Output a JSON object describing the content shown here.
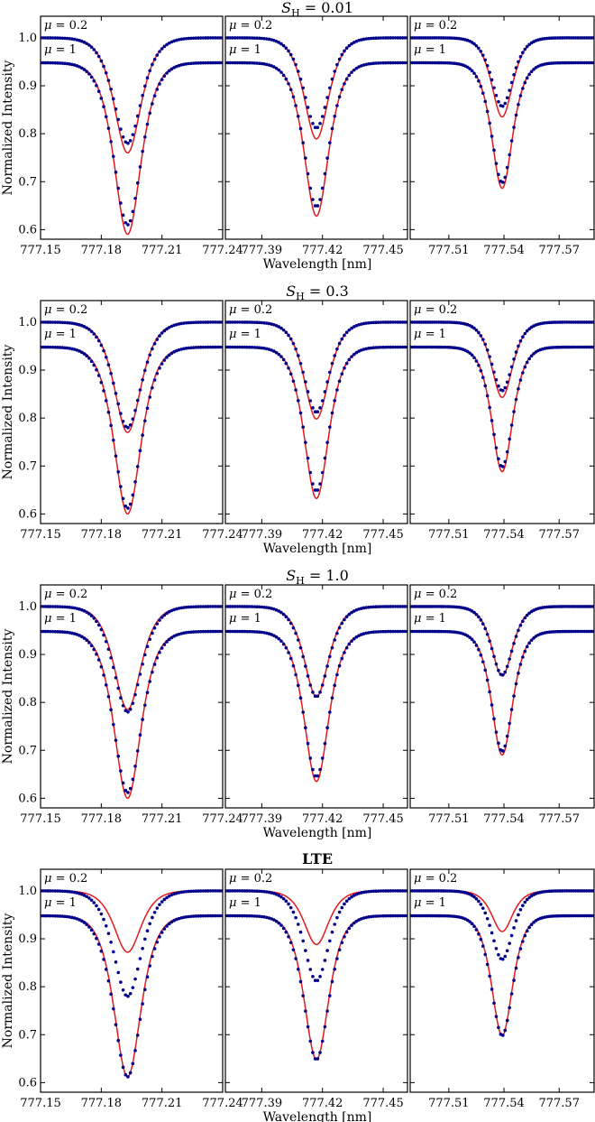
{
  "figure": {
    "ylabel": "Normalized Intensity",
    "xlabel": "Wavelength [nm]",
    "colors": {
      "observed": "#00008b",
      "model": "#e31a1c",
      "axis": "#000000"
    }
  },
  "chart_data": [
    {
      "type": "line",
      "title": "S_H = 0.01",
      "title_parts": {
        "sym": "S",
        "sub": "H",
        "rest": " = 0.01"
      },
      "ylim": [
        0.58,
        1.045
      ],
      "yticks": [
        0.6,
        0.7,
        0.8,
        0.9,
        1.0
      ],
      "panels": [
        {
          "xlim": [
            777.15,
            777.24
          ],
          "xticks": [
            777.15,
            777.18,
            777.21,
            777.24
          ],
          "xtick_labels": [
            "777.15",
            "777.18",
            "777.21",
            "777.24"
          ],
          "center": 777.193,
          "width_obs": 0.0075,
          "width_model": 0.0072,
          "mu_0_2": {
            "continuum": 1.0,
            "obs_min": 0.78,
            "model_min": 0.76
          },
          "mu_1": {
            "continuum": 0.948,
            "obs_min": 0.61,
            "model_min": 0.59
          }
        },
        {
          "xlim": [
            777.372,
            777.462
          ],
          "xticks": [
            777.39,
            777.42,
            777.45
          ],
          "xtick_labels": [
            "777.39",
            "777.42",
            "777.45"
          ],
          "center": 777.417,
          "width_obs": 0.0068,
          "width_model": 0.0066,
          "mu_0_2": {
            "continuum": 1.0,
            "obs_min": 0.812,
            "model_min": 0.789
          },
          "mu_1": {
            "continuum": 0.948,
            "obs_min": 0.648,
            "model_min": 0.628
          }
        },
        {
          "xlim": [
            777.489,
            777.589
          ],
          "xticks": [
            777.51,
            777.54,
            777.57
          ],
          "xtick_labels": [
            "777.51",
            "777.54",
            "777.57"
          ],
          "center": 777.539,
          "width_obs": 0.0064,
          "width_model": 0.0062,
          "mu_0_2": {
            "continuum": 1.0,
            "obs_min": 0.857,
            "model_min": 0.835
          },
          "mu_1": {
            "continuum": 0.948,
            "obs_min": 0.698,
            "model_min": 0.686
          }
        }
      ],
      "mu_labels": [
        "μ = 0.2",
        "μ = 1"
      ]
    },
    {
      "type": "line",
      "title": "S_H = 0.3",
      "title_parts": {
        "sym": "S",
        "sub": "H",
        "rest": " = 0.3"
      },
      "ylim": [
        0.58,
        1.045
      ],
      "yticks": [
        0.6,
        0.7,
        0.8,
        0.9,
        1.0
      ],
      "panels": [
        {
          "xlim": [
            777.15,
            777.24
          ],
          "xticks": [
            777.15,
            777.18,
            777.21,
            777.24
          ],
          "xtick_labels": [
            "777.15",
            "777.18",
            "777.21",
            "777.24"
          ],
          "center": 777.193,
          "width_obs": 0.0075,
          "width_model": 0.0072,
          "mu_0_2": {
            "continuum": 1.0,
            "obs_min": 0.78,
            "model_min": 0.77
          },
          "mu_1": {
            "continuum": 0.948,
            "obs_min": 0.612,
            "model_min": 0.6
          }
        },
        {
          "xlim": [
            777.372,
            777.462
          ],
          "xticks": [
            777.39,
            777.42,
            777.45
          ],
          "xtick_labels": [
            "777.39",
            "777.42",
            "777.45"
          ],
          "center": 777.417,
          "width_obs": 0.0068,
          "width_model": 0.0066,
          "mu_0_2": {
            "continuum": 1.0,
            "obs_min": 0.812,
            "model_min": 0.798
          },
          "mu_1": {
            "continuum": 0.948,
            "obs_min": 0.648,
            "model_min": 0.632
          }
        },
        {
          "xlim": [
            777.489,
            777.589
          ],
          "xticks": [
            777.51,
            777.54,
            777.57
          ],
          "xtick_labels": [
            "777.51",
            "777.54",
            "777.57"
          ],
          "center": 777.539,
          "width_obs": 0.0064,
          "width_model": 0.0062,
          "mu_0_2": {
            "continuum": 1.0,
            "obs_min": 0.857,
            "model_min": 0.843
          },
          "mu_1": {
            "continuum": 0.948,
            "obs_min": 0.698,
            "model_min": 0.688
          }
        }
      ],
      "mu_labels": [
        "μ = 0.2",
        "μ = 1"
      ]
    },
    {
      "type": "line",
      "title": "S_H = 1.0",
      "title_parts": {
        "sym": "S",
        "sub": "H",
        "rest": " = 1.0"
      },
      "ylim": [
        0.58,
        1.045
      ],
      "yticks": [
        0.6,
        0.7,
        0.8,
        0.9,
        1.0
      ],
      "panels": [
        {
          "xlim": [
            777.15,
            777.24
          ],
          "xticks": [
            777.15,
            777.18,
            777.21,
            777.24
          ],
          "xtick_labels": [
            "777.15",
            "777.18",
            "777.21",
            "777.24"
          ],
          "center": 777.193,
          "width_obs": 0.0075,
          "width_model": 0.0072,
          "mu_0_2": {
            "continuum": 1.0,
            "obs_min": 0.78,
            "model_min": 0.785
          },
          "mu_1": {
            "continuum": 0.948,
            "obs_min": 0.612,
            "model_min": 0.6
          }
        },
        {
          "xlim": [
            777.372,
            777.462
          ],
          "xticks": [
            777.39,
            777.42,
            777.45
          ],
          "xtick_labels": [
            "777.39",
            "777.42",
            "777.45"
          ],
          "center": 777.417,
          "width_obs": 0.0068,
          "width_model": 0.0066,
          "mu_0_2": {
            "continuum": 1.0,
            "obs_min": 0.812,
            "model_min": 0.812
          },
          "mu_1": {
            "continuum": 0.948,
            "obs_min": 0.645,
            "model_min": 0.635
          }
        },
        {
          "xlim": [
            777.489,
            777.589
          ],
          "xticks": [
            777.51,
            777.54,
            777.57
          ],
          "xtick_labels": [
            "777.51",
            "777.54",
            "777.57"
          ],
          "center": 777.539,
          "width_obs": 0.0064,
          "width_model": 0.0062,
          "mu_0_2": {
            "continuum": 1.0,
            "obs_min": 0.857,
            "model_min": 0.855
          },
          "mu_1": {
            "continuum": 0.948,
            "obs_min": 0.698,
            "model_min": 0.69
          }
        }
      ],
      "mu_labels": [
        "μ = 0.2",
        "μ = 1"
      ]
    },
    {
      "type": "line",
      "title": "LTE",
      "title_parts": {
        "sym": "",
        "sub": "",
        "rest": "LTE"
      },
      "ylim": [
        0.58,
        1.045
      ],
      "yticks": [
        0.6,
        0.7,
        0.8,
        0.9,
        1.0
      ],
      "panels": [
        {
          "xlim": [
            777.15,
            777.24
          ],
          "xticks": [
            777.15,
            777.18,
            777.21,
            777.24
          ],
          "xtick_labels": [
            "777.15",
            "777.18",
            "777.21",
            "777.24"
          ],
          "center": 777.193,
          "width_obs": 0.0075,
          "width_model": 0.0072,
          "mu_0_2": {
            "continuum": 1.0,
            "obs_min": 0.78,
            "model_min": 0.872
          },
          "mu_1": {
            "continuum": 0.948,
            "obs_min": 0.612,
            "model_min": 0.612
          }
        },
        {
          "xlim": [
            777.372,
            777.462
          ],
          "xticks": [
            777.39,
            777.42,
            777.45
          ],
          "xtick_labels": [
            "777.39",
            "777.42",
            "777.45"
          ],
          "center": 777.417,
          "width_obs": 0.0068,
          "width_model": 0.0066,
          "mu_0_2": {
            "continuum": 1.0,
            "obs_min": 0.812,
            "model_min": 0.888
          },
          "mu_1": {
            "continuum": 0.948,
            "obs_min": 0.648,
            "model_min": 0.648
          }
        },
        {
          "xlim": [
            777.489,
            777.589
          ],
          "xticks": [
            777.51,
            777.54,
            777.57
          ],
          "xtick_labels": [
            "777.51",
            "777.54",
            "777.57"
          ],
          "center": 777.539,
          "width_obs": 0.0064,
          "width_model": 0.0062,
          "mu_0_2": {
            "continuum": 1.0,
            "obs_min": 0.857,
            "model_min": 0.915
          },
          "mu_1": {
            "continuum": 0.948,
            "obs_min": 0.698,
            "model_min": 0.698
          }
        }
      ],
      "mu_labels": [
        "μ = 0.2",
        "μ = 1"
      ]
    }
  ]
}
